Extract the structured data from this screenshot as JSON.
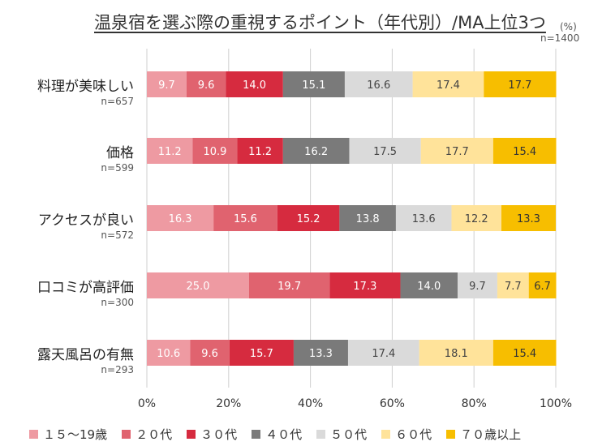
{
  "chart_data": {
    "type": "bar",
    "orientation": "horizontal-stacked-100",
    "title": "温泉宿を選ぶ際の重視するポイント（年代別）/MA上位3つ",
    "unit_label": "(%)",
    "total_n": "n=1400",
    "categories": [
      "料理が美味しい",
      "価格",
      "アクセスが良い",
      "口コミが高評価",
      "露天風呂の有無"
    ],
    "category_n": [
      "n=657",
      "n=599",
      "n=572",
      "n=300",
      "n=293"
    ],
    "series": [
      {
        "name": "１５～19歳",
        "color": "#EE9AA2",
        "text_color": "#ffffff",
        "values": [
          9.7,
          11.2,
          16.3,
          25.0,
          10.6
        ]
      },
      {
        "name": "２０代",
        "color": "#E0636F",
        "text_color": "#ffffff",
        "values": [
          9.6,
          10.9,
          15.6,
          19.7,
          9.6
        ]
      },
      {
        "name": "３０代",
        "color": "#D62B3F",
        "text_color": "#ffffff",
        "values": [
          14.0,
          11.2,
          15.2,
          17.3,
          15.7
        ]
      },
      {
        "name": "４０代",
        "color": "#7A7A7A",
        "text_color": "#ffffff",
        "values": [
          15.1,
          16.2,
          13.8,
          14.0,
          13.3
        ]
      },
      {
        "name": "５０代",
        "color": "#DADADA",
        "text_color": "#444444",
        "values": [
          16.6,
          17.5,
          13.6,
          9.7,
          17.4
        ]
      },
      {
        "name": "６０代",
        "color": "#FFE39A",
        "text_color": "#444444",
        "values": [
          17.4,
          17.7,
          12.2,
          7.7,
          18.1
        ]
      },
      {
        "name": "７０歳以上",
        "color": "#F7BE00",
        "text_color": "#333333",
        "values": [
          17.7,
          15.4,
          13.3,
          6.7,
          15.4
        ]
      }
    ],
    "xlim": [
      0,
      100
    ],
    "x_ticks": [
      "0%",
      "20%",
      "40%",
      "60%",
      "80%",
      "100%"
    ],
    "x_tick_values": [
      0,
      20,
      40,
      60,
      80,
      100
    ],
    "grid": true,
    "legend_position": "bottom"
  }
}
